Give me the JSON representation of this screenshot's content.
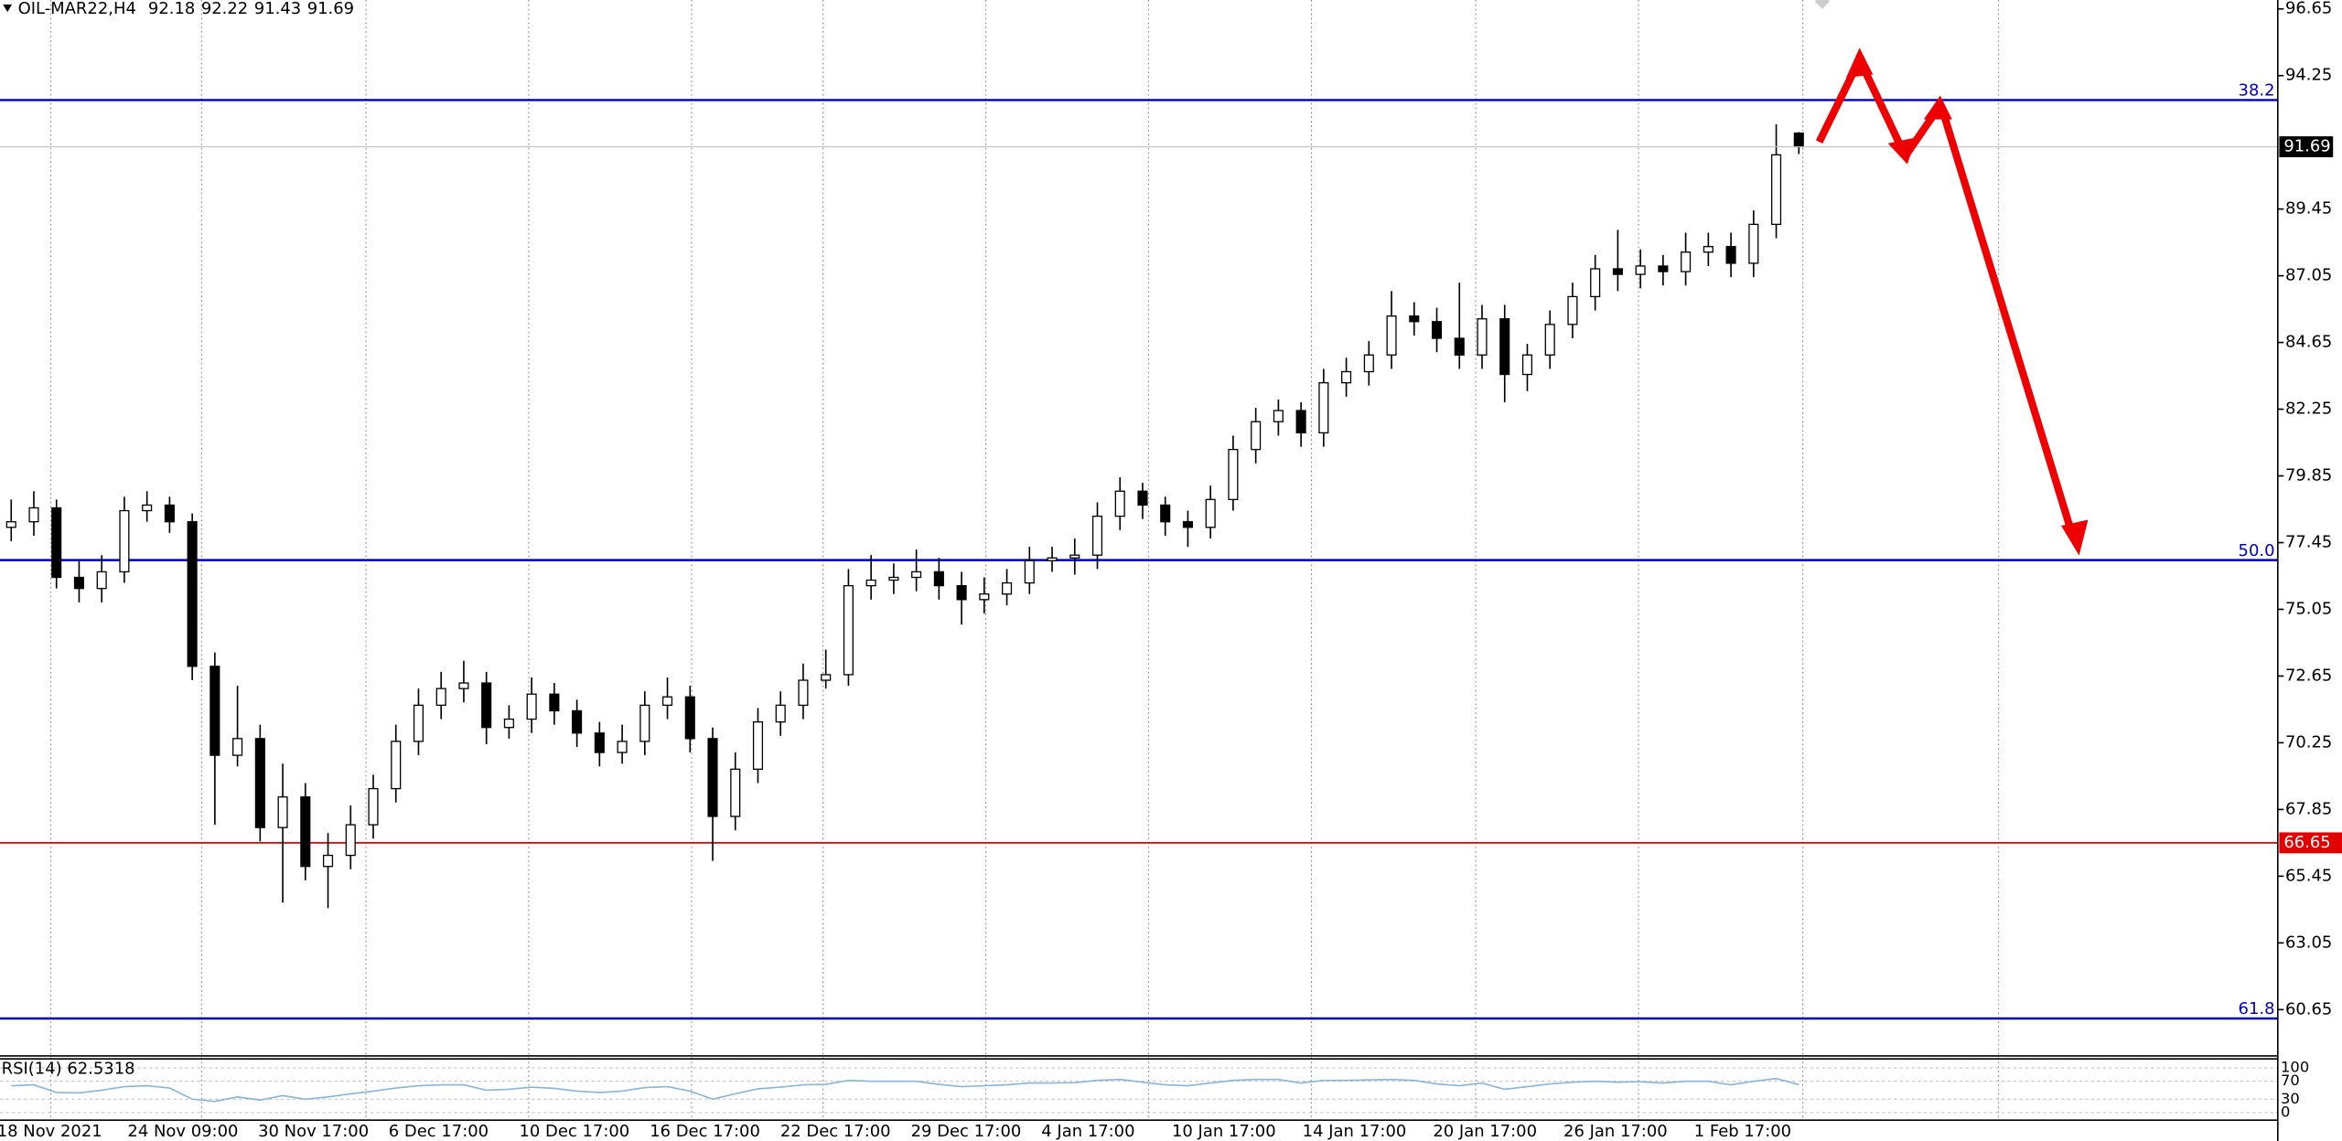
{
  "chart_data": {
    "type": "candlestick",
    "title": "OIL-MAR22,H4",
    "x_labels": [
      "18 Nov 2021",
      "24 Nov 09:00",
      "30 Nov 17:00",
      "6 Dec 17:00",
      "10 Dec 17:00",
      "16 Dec 17:00",
      "22 Dec 17:00",
      "29 Dec 17:00",
      "4 Jan 17:00",
      "10 Jan 17:00",
      "14 Jan 17:00",
      "20 Jan 17:00",
      "26 Jan 17:00",
      "1 Feb 17:00"
    ],
    "open": [
      78.0,
      78.2,
      78.7,
      76.2,
      75.8,
      76.4,
      78.6,
      78.8,
      78.2,
      73.0,
      69.8,
      70.4,
      67.2,
      68.3,
      65.8,
      66.2,
      67.3,
      68.6,
      70.3,
      71.6,
      72.2,
      72.4,
      70.8,
      71.1,
      72.0,
      71.4,
      70.6,
      69.9,
      70.3,
      71.6,
      71.9,
      70.4,
      67.6,
      69.3,
      71.0,
      71.6,
      72.5,
      72.7,
      75.9,
      76.1,
      76.2,
      76.4,
      75.9,
      75.4,
      75.6,
      76.0,
      76.8,
      76.9,
      77.0,
      78.4,
      79.3,
      78.8,
      78.2,
      78.0,
      79.0,
      80.8,
      81.8,
      82.2,
      81.4,
      83.2,
      83.6,
      84.2,
      85.6,
      85.4,
      84.8,
      84.2,
      85.5,
      83.5,
      84.2,
      85.3,
      86.3,
      87.3,
      87.1,
      87.4,
      87.2,
      87.9,
      88.1,
      87.5,
      88.9,
      92.18
    ],
    "high": [
      79.0,
      79.3,
      79.0,
      76.8,
      77.0,
      79.1,
      79.3,
      79.1,
      78.5,
      73.5,
      72.3,
      70.9,
      69.5,
      68.8,
      67.0,
      68.0,
      69.1,
      70.9,
      72.2,
      72.8,
      73.2,
      72.8,
      71.6,
      72.6,
      72.4,
      71.8,
      71.0,
      70.9,
      72.1,
      72.6,
      72.3,
      70.8,
      69.9,
      71.5,
      72.1,
      73.1,
      73.6,
      76.5,
      77.0,
      76.7,
      77.2,
      76.9,
      76.4,
      76.2,
      76.5,
      77.3,
      77.3,
      77.6,
      78.9,
      79.8,
      79.6,
      79.1,
      78.6,
      79.5,
      81.3,
      82.3,
      82.6,
      82.5,
      83.7,
      84.1,
      84.7,
      86.5,
      86.1,
      85.9,
      86.8,
      86.0,
      86.0,
      84.6,
      85.8,
      86.8,
      87.8,
      88.7,
      88.0,
      87.8,
      88.6,
      88.6,
      88.6,
      89.4,
      92.5,
      92.22
    ],
    "low": [
      77.5,
      77.7,
      75.8,
      75.3,
      75.3,
      76.0,
      78.2,
      77.8,
      72.5,
      67.3,
      69.4,
      66.7,
      64.5,
      65.3,
      64.3,
      65.7,
      66.8,
      68.1,
      69.8,
      71.1,
      71.7,
      70.2,
      70.4,
      70.6,
      70.9,
      70.1,
      69.4,
      69.5,
      69.8,
      71.1,
      69.9,
      66.0,
      67.1,
      68.8,
      70.5,
      71.1,
      72.2,
      72.3,
      75.4,
      75.6,
      75.7,
      75.4,
      74.5,
      74.9,
      75.2,
      75.6,
      76.4,
      76.3,
      76.5,
      77.9,
      78.3,
      77.7,
      77.3,
      77.6,
      78.6,
      80.3,
      81.3,
      80.9,
      80.9,
      82.7,
      83.1,
      83.7,
      84.9,
      84.3,
      83.7,
      83.7,
      82.5,
      82.9,
      83.7,
      84.8,
      85.8,
      86.5,
      86.6,
      86.7,
      86.7,
      87.4,
      87.0,
      87.0,
      88.4,
      91.43
    ],
    "close": [
      78.2,
      78.7,
      76.2,
      75.8,
      76.4,
      78.6,
      78.8,
      78.2,
      73.0,
      69.8,
      70.4,
      67.2,
      68.3,
      65.8,
      66.2,
      67.3,
      68.6,
      70.3,
      71.6,
      72.2,
      72.4,
      70.8,
      71.1,
      72.0,
      71.4,
      70.6,
      69.9,
      70.3,
      71.6,
      71.9,
      70.4,
      67.6,
      69.3,
      71.0,
      71.6,
      72.5,
      72.7,
      75.9,
      76.1,
      76.2,
      76.4,
      75.9,
      75.4,
      75.6,
      76.0,
      76.8,
      76.9,
      77.0,
      78.4,
      79.3,
      78.8,
      78.2,
      78.0,
      79.0,
      80.8,
      81.8,
      82.2,
      81.4,
      83.2,
      83.6,
      84.2,
      85.6,
      85.4,
      84.8,
      84.2,
      85.5,
      83.5,
      84.2,
      85.3,
      86.3,
      87.3,
      87.1,
      87.4,
      87.2,
      87.9,
      88.1,
      87.5,
      88.9,
      91.4,
      91.69
    ],
    "up_color": "#ffffff",
    "down_color": "#000000",
    "ylim": [
      59.04,
      96.97
    ],
    "yticks": [
      96.65,
      94.25,
      89.45,
      87.05,
      84.65,
      82.25,
      79.85,
      77.45,
      75.05,
      72.65,
      70.25,
      67.85,
      65.45,
      63.05,
      60.65
    ],
    "levels": [
      {
        "value": 93.37,
        "label": "38.2"
      },
      {
        "value": 76.82,
        "label": "50.0"
      },
      {
        "value": 60.33,
        "label": "61.8"
      }
    ],
    "level_color": "#0000c0",
    "support": {
      "value": 66.65,
      "color": "#e00000"
    },
    "rsi": {
      "title": "RSI(14) 62.5318",
      "color": "#8ab4d8",
      "ylim": [
        0,
        100
      ],
      "yticks": [
        0,
        30,
        70,
        100
      ],
      "values": [
        60,
        62,
        45,
        44,
        50,
        58,
        60,
        55,
        30,
        25,
        35,
        28,
        38,
        30,
        35,
        42,
        48,
        55,
        60,
        62,
        62,
        50,
        52,
        57,
        54,
        48,
        45,
        48,
        56,
        58,
        48,
        30,
        42,
        53,
        57,
        62,
        63,
        72,
        70,
        70,
        70,
        63,
        58,
        60,
        62,
        66,
        66,
        67,
        72,
        74,
        68,
        62,
        60,
        66,
        72,
        74,
        74,
        66,
        72,
        72,
        73,
        74,
        72,
        64,
        60,
        66,
        52,
        58,
        64,
        68,
        70,
        68,
        69,
        66,
        70,
        70,
        62,
        70,
        76,
        62.5318
      ]
    }
  }
}
